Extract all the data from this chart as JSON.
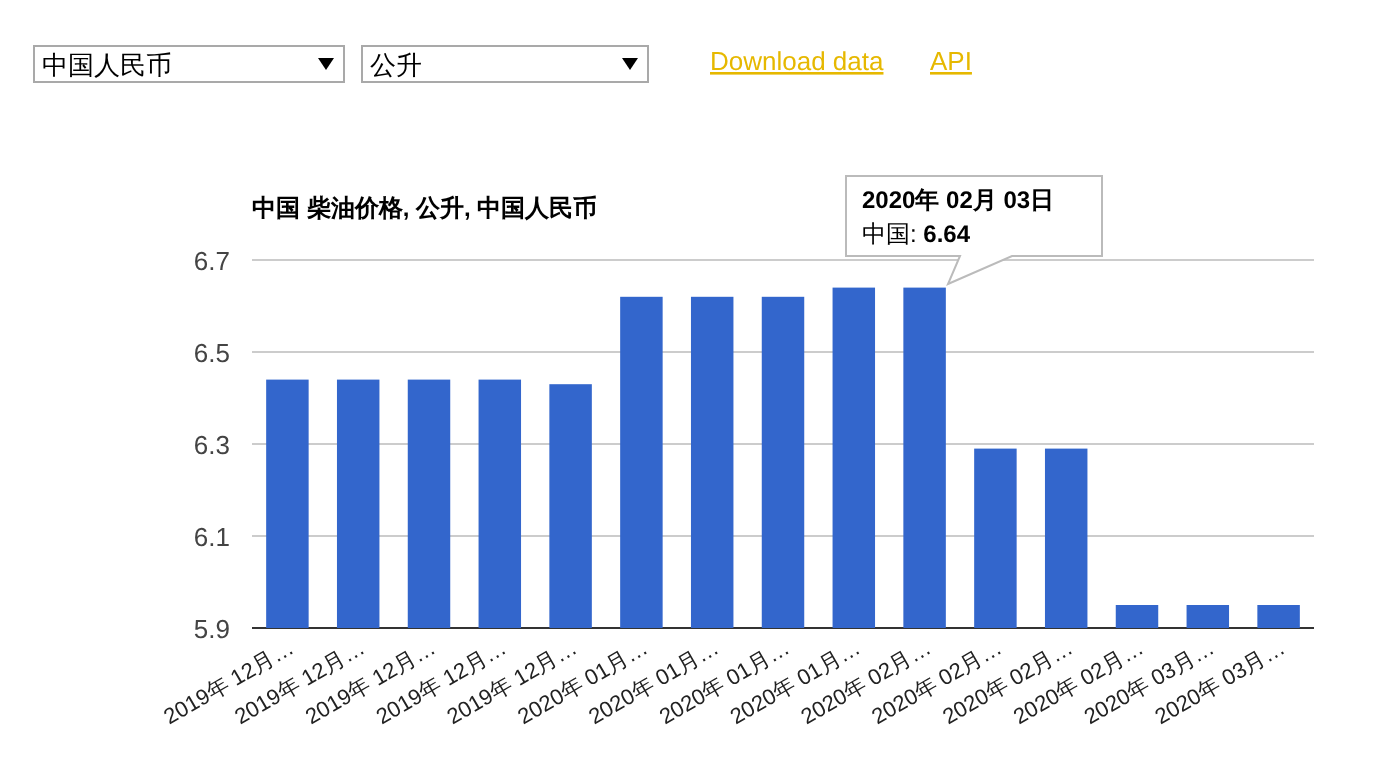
{
  "chart_data": {
    "type": "bar",
    "title": "中国 柴油价格, 公升, 中国人民币",
    "categories": [
      "2019年 12月…",
      "2019年 12月…",
      "2019年 12月…",
      "2019年 12月…",
      "2019年 12月…",
      "2020年 01月…",
      "2020年 01月…",
      "2020年 01月…",
      "2020年 01月…",
      "2020年 02月…",
      "2020年 02月…",
      "2020年 02月…",
      "2020年 02月…",
      "2020年 03月…",
      "2020年 03月…"
    ],
    "values": [
      6.44,
      6.44,
      6.44,
      6.44,
      6.43,
      6.62,
      6.62,
      6.62,
      6.64,
      6.64,
      6.29,
      6.29,
      5.95,
      5.95,
      5.95
    ],
    "color": "#3366cc",
    "ylim": [
      5.9,
      6.7
    ],
    "yticks": [
      5.9,
      6.1,
      6.3,
      6.5,
      6.7
    ],
    "grid": "y",
    "annotations": [
      "中国人民币",
      "公升",
      "Download data",
      "API",
      "2020年 02月 03日",
      "中国: 6.64"
    ]
  }
}
